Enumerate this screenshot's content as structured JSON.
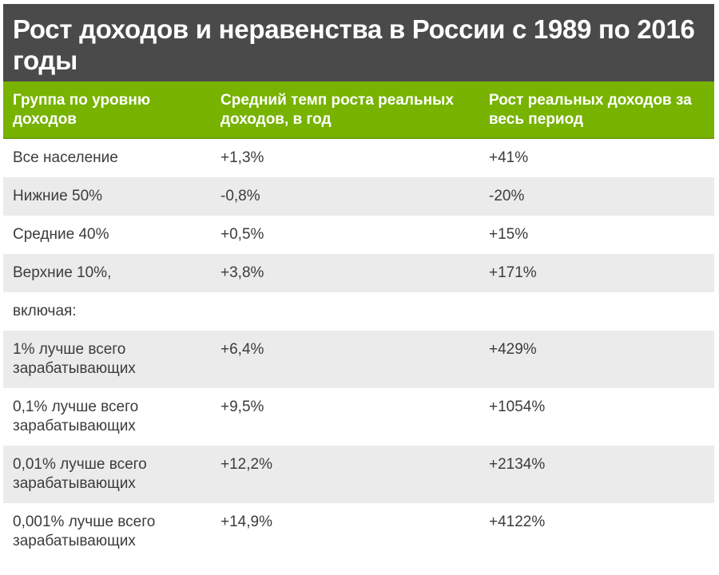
{
  "title": "Рост доходов и неравенства в России с 1989 по 2016 годы",
  "colors": {
    "title_bg": "#4a4a4a",
    "header_bg": "#77b300",
    "stripe_bg": "#ebebeb",
    "text": "#3c3c3c"
  },
  "table": {
    "headers": [
      "Группа по уровню доходов",
      "Средний темп роста реальных доходов, в год",
      "Рост реальных доходов за весь период"
    ],
    "rows": [
      {
        "group": "Все население",
        "annual": "+1,3%",
        "total": "+41%"
      },
      {
        "group": "Нижние 50%",
        "annual": "-0,8%",
        "total": "-20%"
      },
      {
        "group": "Средние 40%",
        "annual": "+0,5%",
        "total": "+15%"
      },
      {
        "group": "Верхние 10%,",
        "annual": "+3,8%",
        "total": "+171%"
      },
      {
        "group": "включая:",
        "annual": "",
        "total": ""
      },
      {
        "group": "1% лучше всего зарабатывающих",
        "annual": "+6,4%",
        "total": "+429%"
      },
      {
        "group": "0,1% лучше всего зарабатывающих",
        "annual": "+9,5%",
        "total": "+1054%"
      },
      {
        "group": "0,01% лучше всего зарабатывающих",
        "annual": "+12,2%",
        "total": "+2134%"
      },
      {
        "group": "0,001% лучше всего зарабатывающих",
        "annual": "+14,9%",
        "total": "+4122%"
      }
    ]
  }
}
